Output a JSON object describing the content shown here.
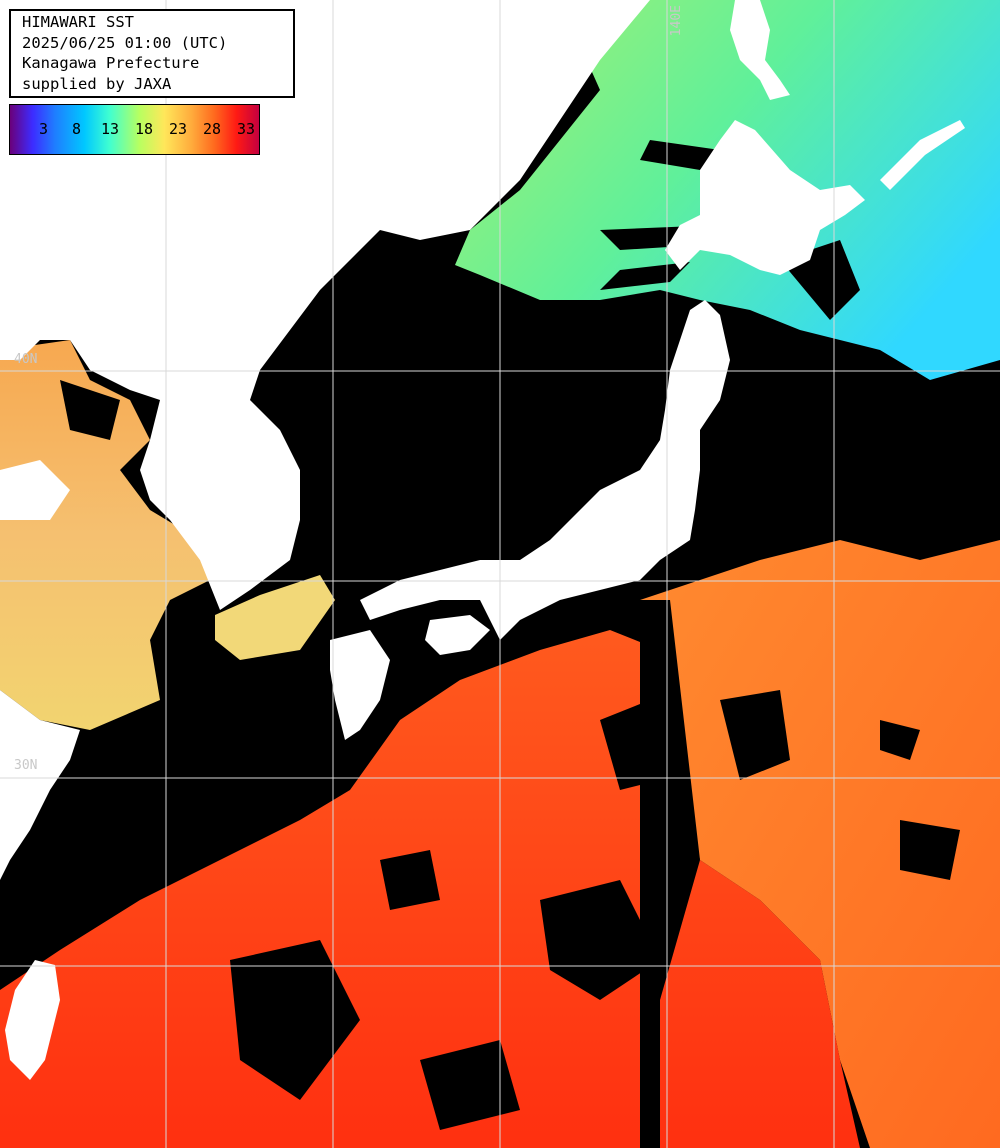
{
  "title": {
    "lines": [
      "HIMAWARI SST",
      "2025/06/25 01:00 (UTC)",
      "Kanagawa Prefecture",
      "supplied by JAXA"
    ]
  },
  "legend": {
    "labels": [
      "3",
      "8",
      "13",
      "18",
      "23",
      "28",
      "33"
    ]
  },
  "grid_labels": {
    "lat_1": "40N",
    "lat_2": "30N",
    "lon_1": "140E"
  },
  "colors": {
    "land": "#ffffff",
    "cloud_mask": "#000000",
    "grid": "#d8d8d8",
    "cold_water": "#38e8ff",
    "cool_water": "#7cf088",
    "mild_water": "#f0d860",
    "warm_water": "#ff8a30",
    "hot_water": "#ff3a14"
  }
}
